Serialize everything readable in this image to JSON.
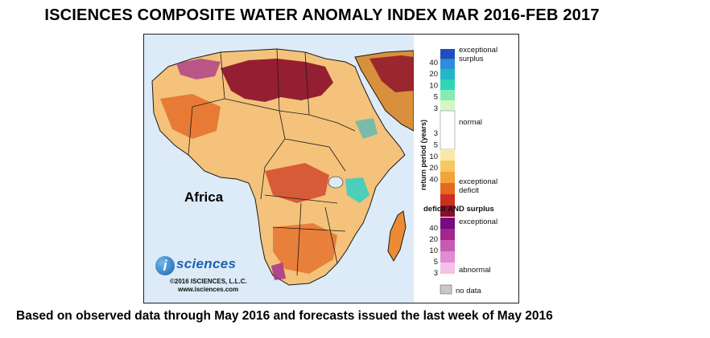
{
  "title": "ISCIENCES COMPOSITE WATER ANOMALY INDEX MAR 2016-FEB 2017",
  "map": {
    "region_label": "Africa",
    "colors": {
      "ocean": "#dcebf7",
      "land_base": "#f4c27a",
      "deficit_dark": "#8b0d2a",
      "deficit_mid": "#e3621f",
      "deficit_light": "#f6a743",
      "surplus": "#2fd0c4",
      "both": "#a1278f",
      "border": "#1a1a1a"
    }
  },
  "logo": {
    "badge": "i",
    "word": "sciences",
    "copyright": "©2016  ISCIENCES, L.L.C.",
    "url": "www.isciences.com"
  },
  "legend": {
    "axis_title": "return period (years)",
    "surplus_label_1": "exceptional",
    "surplus_label_2": "surplus",
    "normal_label": "normal",
    "deficit_label_1": "exceptional",
    "deficit_label_2": "deficit",
    "both_title": "deficit AND surplus",
    "both_top_label": "exceptional",
    "both_bottom_label": "abnormal",
    "nodata_label": "no data",
    "surplus_ticks": [
      "40",
      "20",
      "10",
      "5",
      "3"
    ],
    "deficit_ticks": [
      "3",
      "5",
      "10",
      "20",
      "40"
    ],
    "both_ticks": [
      "40",
      "20",
      "10",
      "5",
      "3"
    ],
    "surplus_colors": [
      "#1f4fbf",
      "#2a8fd6",
      "#24b6c8",
      "#2fd6b4",
      "#84ecb3",
      "#d6f6c6"
    ],
    "deficit_colors": [
      "#fbe7a8",
      "#f7c760",
      "#f3a33a",
      "#e4691f",
      "#cc2f1e",
      "#8b0d2a"
    ],
    "both_colors": [
      "#7a0a7e",
      "#a1278f",
      "#c75bb3",
      "#e08cd0",
      "#f2c2e8"
    ],
    "nodata_color": "#c8c8c8"
  },
  "footer": "Based on observed data through May 2016 and forecasts issued the last week of May 2016"
}
